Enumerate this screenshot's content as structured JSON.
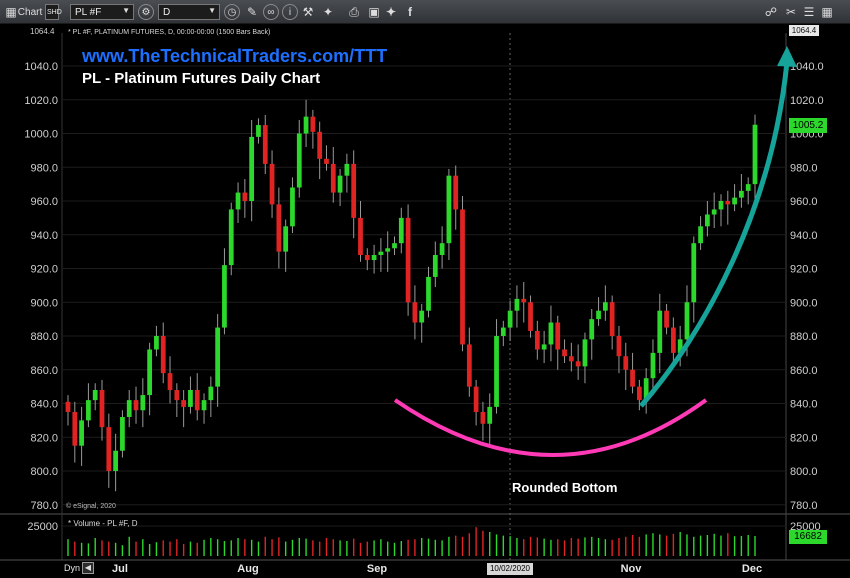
{
  "toolbar": {
    "chart_label": "Chart",
    "chart_sub": "SHD",
    "symbol_value": "PL #F",
    "interval_value": "D"
  },
  "overlay": {
    "url": "www.TheTechnicalTraders.com/TTT",
    "title": "PL - Platinum Futures Daily Chart",
    "series_info": "* PL #F, PLATINUM FUTURES, D, 00:00-00:00 (1500 Bars Back)",
    "volume_info": "* Volume - PL #F, D",
    "copyright": "© eSignal, 2020",
    "annotation": "Rounded Bottom",
    "top_left_value": "1064.4",
    "top_right_value": "1064.4",
    "last_price": "1005.2",
    "last_volume": "16682",
    "date_marker": "10/02/2020",
    "dyn_label": "Dyn"
  },
  "colors": {
    "up": "#2bd82b",
    "down": "#e02424",
    "cup_curve": "#ff3ab6",
    "arrow": "#16a39a",
    "url": "#1e6fff"
  },
  "chart_data": {
    "type": "candlestick",
    "instrument": "PL #F, PLATINUM FUTURES",
    "interval": "D",
    "price_range": [
      772,
      1064.4
    ],
    "price_ticks": [
      780,
      800,
      820,
      840,
      860,
      880,
      900,
      920,
      940,
      960,
      980,
      1000,
      1020,
      1040
    ],
    "price_tick_labels": [
      "780.0",
      "800.0",
      "820.0",
      "840.0",
      "860.0",
      "880.0",
      "900.0",
      "920.0",
      "940.0",
      "960.0",
      "980.0",
      "1000.0",
      "1020.0",
      "1040.0"
    ],
    "x_month_labels": [
      "Jul",
      "Aug",
      "Sep",
      "Nov",
      "Dec"
    ],
    "volume_ticks": [
      25000
    ],
    "volume_tick_label": "25000",
    "volume_max": 30000,
    "last_price": 1005.2,
    "last_volume": 16682,
    "closes": [
      835,
      815,
      830,
      842,
      848,
      826,
      800,
      812,
      832,
      842,
      836,
      845,
      872,
      880,
      858,
      848,
      842,
      838,
      848,
      836,
      842,
      850,
      885,
      922,
      955,
      965,
      960,
      998,
      1005,
      982,
      958,
      930,
      945,
      968,
      1000,
      1010,
      1001,
      985,
      982,
      965,
      975,
      982,
      950,
      928,
      925,
      928,
      930,
      932,
      935,
      950,
      900,
      888,
      895,
      915,
      928,
      935,
      975,
      955,
      875,
      850,
      835,
      828,
      838,
      880,
      885,
      895,
      902,
      900,
      883,
      872,
      875,
      888,
      872,
      868,
      865,
      862,
      878,
      890,
      895,
      900,
      880,
      868,
      860,
      850,
      842,
      855,
      870,
      895,
      885,
      870,
      878,
      900,
      935,
      945,
      952,
      955,
      960,
      958,
      962,
      966,
      970,
      1005.2
    ],
    "volumes": [
      14000,
      12000,
      11000,
      10500,
      15000,
      13000,
      12000,
      11000,
      9000,
      16000,
      12000,
      14000,
      10000,
      11500,
      13000,
      12000,
      14000,
      10000,
      12000,
      11000,
      13500,
      15000,
      14000,
      12500,
      13000,
      15000,
      14000,
      13500,
      12000,
      16000,
      14000,
      15500,
      12000,
      13500,
      15000,
      14500,
      13000,
      12000,
      15000,
      14000,
      13000,
      12500,
      14500,
      11000,
      12000,
      13000,
      14000,
      12000,
      11000,
      12500,
      13500,
      14000,
      15000,
      14500,
      13500,
      13000,
      16000,
      17000,
      16000,
      19000,
      24000,
      21000,
      20000,
      18000,
      17000,
      16500,
      15000,
      14000,
      16000,
      15500,
      14500,
      13500,
      14000,
      13000,
      15000,
      14500,
      15500,
      16000,
      15000,
      14000,
      13500,
      15000,
      16000,
      17500,
      16000,
      18000,
      19000,
      18000,
      17000,
      18500,
      20000,
      18000,
      16000,
      17000,
      17500,
      18500,
      17000,
      19000,
      16500,
      16682,
      17500,
      16682
    ],
    "trend_annotations": [
      "Rounded Bottom",
      "up-arrow"
    ]
  }
}
